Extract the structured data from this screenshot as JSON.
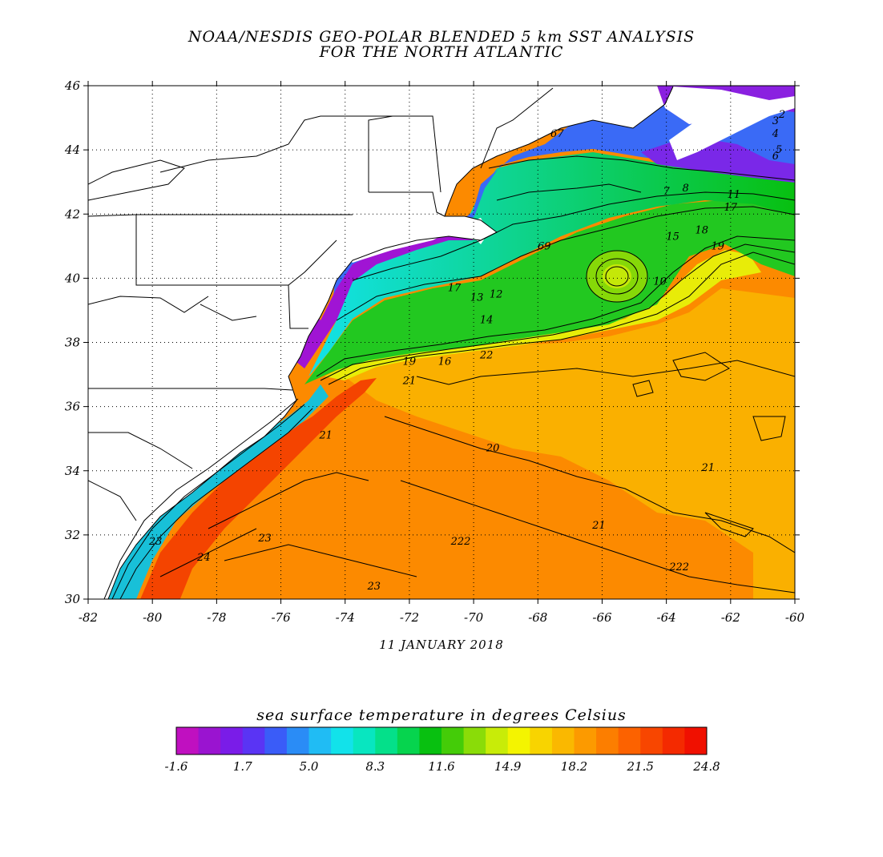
{
  "title_line1": "NOAA/NESDIS GEO-POLAR BLENDED 5 km SST ANALYSIS",
  "title_line2": "FOR THE NORTH ATLANTIC",
  "date": "11 JANUARY 2018",
  "map": {
    "lon_range": [
      -82,
      -60
    ],
    "lat_range": [
      30,
      46
    ],
    "lon_ticks": [
      "-82",
      "-80",
      "-78",
      "-76",
      "-74",
      "-72",
      "-70",
      "-68",
      "-66",
      "-64",
      "-62",
      "-60"
    ],
    "lat_ticks": [
      "30",
      "32",
      "34",
      "36",
      "38",
      "40",
      "42",
      "44",
      "46"
    ],
    "grid": "dotted"
  },
  "contour_labels": [
    {
      "text": "2",
      "lon": -60.4,
      "lat": 45.0
    },
    {
      "text": "3",
      "lon": -60.6,
      "lat": 44.8
    },
    {
      "text": "4",
      "lon": -60.6,
      "lat": 44.4
    },
    {
      "text": "5",
      "lon": -60.5,
      "lat": 43.9
    },
    {
      "text": "6",
      "lon": -60.6,
      "lat": 43.7
    },
    {
      "text": "7",
      "lon": -64.0,
      "lat": 42.6
    },
    {
      "text": "8",
      "lon": -63.4,
      "lat": 42.7
    },
    {
      "text": "67",
      "lon": -67.4,
      "lat": 44.4
    },
    {
      "text": "11",
      "lon": -61.9,
      "lat": 42.5
    },
    {
      "text": "17",
      "lon": -62.0,
      "lat": 42.1
    },
    {
      "text": "15",
      "lon": -63.8,
      "lat": 41.2
    },
    {
      "text": "18",
      "lon": -62.9,
      "lat": 41.4
    },
    {
      "text": "19",
      "lon": -62.4,
      "lat": 40.9
    },
    {
      "text": "69",
      "lon": -67.8,
      "lat": 40.9
    },
    {
      "text": "10",
      "lon": -64.2,
      "lat": 39.8
    },
    {
      "text": "17",
      "lon": -70.6,
      "lat": 39.6
    },
    {
      "text": "13",
      "lon": -69.9,
      "lat": 39.3
    },
    {
      "text": "12",
      "lon": -69.3,
      "lat": 39.4
    },
    {
      "text": "14",
      "lon": -69.6,
      "lat": 38.6
    },
    {
      "text": "19",
      "lon": -72.0,
      "lat": 37.3
    },
    {
      "text": "16",
      "lon": -70.9,
      "lat": 37.3
    },
    {
      "text": "22",
      "lon": -69.6,
      "lat": 37.5
    },
    {
      "text": "21",
      "lon": -72.0,
      "lat": 36.7
    },
    {
      "text": "21",
      "lon": -74.6,
      "lat": 35.0
    },
    {
      "text": "20",
      "lon": -69.4,
      "lat": 34.6
    },
    {
      "text": "21",
      "lon": -62.7,
      "lat": 34.0
    },
    {
      "text": "21",
      "lon": -66.1,
      "lat": 32.2
    },
    {
      "text": "222",
      "lon": -70.4,
      "lat": 31.7
    },
    {
      "text": "222",
      "lon": -63.6,
      "lat": 30.9
    },
    {
      "text": "23",
      "lon": -76.5,
      "lat": 31.8
    },
    {
      "text": "24",
      "lon": -78.4,
      "lat": 31.2
    },
    {
      "text": "23",
      "lon": -73.1,
      "lat": 30.3
    },
    {
      "text": "23",
      "lon": -79.9,
      "lat": 31.7
    }
  ],
  "colorbar": {
    "title": "sea surface temperature in degrees Celsius",
    "min": -1.6,
    "max": 24.8,
    "tick_labels": [
      "-1.6",
      "1.7",
      "5.0",
      "8.3",
      "11.6",
      "14.9",
      "18.2",
      "21.5",
      "24.8"
    ],
    "colors": [
      "#c010c0",
      "#9a14d0",
      "#7a1ce8",
      "#5a34f4",
      "#3a5cf8",
      "#2a8cf6",
      "#20bcf4",
      "#12e2ea",
      "#08e6c0",
      "#04e08a",
      "#06d44e",
      "#08c010",
      "#44cc08",
      "#8adc08",
      "#c8ec08",
      "#f4f400",
      "#f8d400",
      "#fab800",
      "#fc9a00",
      "#fc7e00",
      "#fc6200",
      "#f84600",
      "#f42a00",
      "#f01000"
    ]
  },
  "colors": {
    "land": "#ffffff",
    "contour": "#000000"
  }
}
